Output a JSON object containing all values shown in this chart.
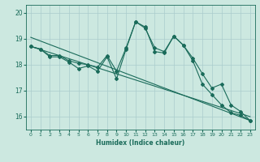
{
  "xlabel": "Humidex (Indice chaleur)",
  "bg_color": "#cce8e0",
  "grid_color": "#aacccc",
  "line_color": "#1a6b5a",
  "xlim": [
    -0.5,
    23.5
  ],
  "ylim": [
    15.5,
    20.3
  ],
  "xticks": [
    0,
    1,
    2,
    3,
    4,
    5,
    6,
    7,
    8,
    9,
    10,
    11,
    12,
    13,
    14,
    15,
    16,
    17,
    18,
    19,
    20,
    21,
    22,
    23
  ],
  "yticks": [
    16,
    17,
    18,
    19,
    20
  ],
  "line1_x": [
    0,
    1,
    2,
    3,
    4,
    5,
    6,
    7,
    8,
    9,
    10,
    11,
    12,
    13,
    14,
    15,
    16,
    17,
    18,
    19,
    20,
    21,
    22,
    23
  ],
  "line1_y": [
    18.7,
    18.6,
    18.3,
    18.3,
    18.1,
    17.85,
    17.95,
    17.75,
    18.3,
    17.45,
    18.6,
    19.65,
    19.45,
    18.5,
    18.45,
    19.1,
    18.75,
    18.25,
    17.65,
    17.1,
    17.25,
    16.45,
    16.2,
    15.85
  ],
  "line2_x": [
    0,
    1,
    2,
    3,
    4,
    5,
    6,
    7,
    8,
    9,
    10,
    11,
    12,
    13,
    14,
    15,
    16,
    17,
    18,
    19,
    20,
    21,
    22,
    23
  ],
  "line2_y": [
    18.7,
    18.6,
    18.35,
    18.35,
    18.15,
    18.05,
    18.0,
    17.9,
    18.35,
    17.75,
    18.65,
    19.65,
    19.4,
    18.65,
    18.5,
    19.1,
    18.75,
    18.15,
    17.25,
    16.85,
    16.45,
    16.15,
    16.05,
    15.85
  ],
  "line3_x": [
    0,
    23
  ],
  "line3_y": [
    18.7,
    16.0
  ],
  "line4_x": [
    0,
    23
  ],
  "line4_y": [
    19.05,
    15.85
  ],
  "markersize": 2.0,
  "linewidth": 0.8
}
